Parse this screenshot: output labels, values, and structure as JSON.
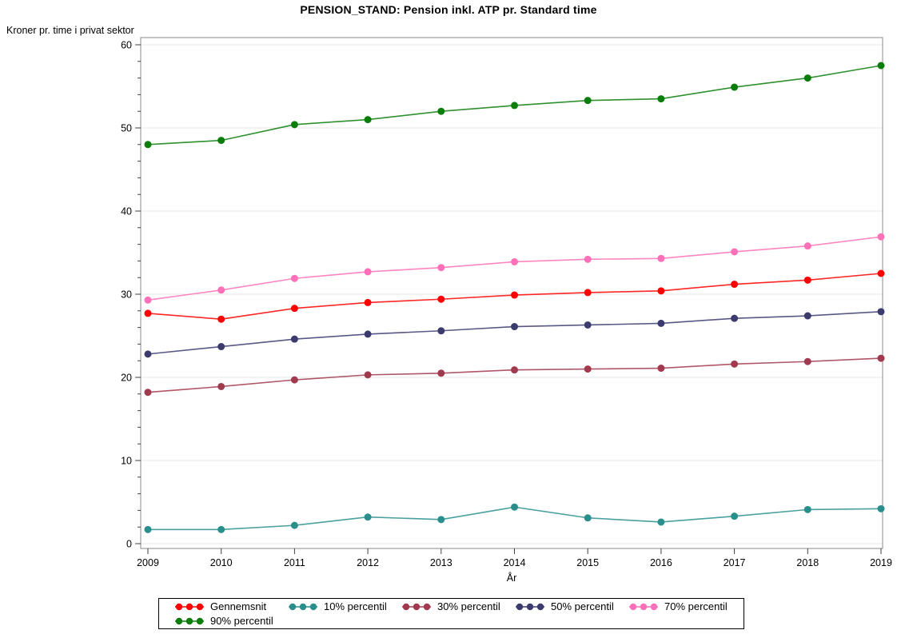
{
  "title": "PENSION_STAND: Pension inkl. ATP pr. Standard time",
  "y_axis_title": "Kroner pr. time i privat sektor",
  "x_axis_title": "År",
  "chart_data": {
    "type": "line",
    "x": [
      2009,
      2010,
      2011,
      2012,
      2013,
      2014,
      2015,
      2016,
      2017,
      2018,
      2019
    ],
    "series": [
      {
        "name": "Gennemsnit",
        "color": "#FF0000",
        "values": [
          27.7,
          27.0,
          28.3,
          29.0,
          29.4,
          29.9,
          30.2,
          30.4,
          31.2,
          31.7,
          32.5
        ]
      },
      {
        "name": "10% percentil",
        "color": "#2A8F8C",
        "values": [
          1.7,
          1.7,
          2.2,
          3.2,
          2.9,
          4.4,
          3.1,
          2.6,
          3.3,
          4.1,
          4.2
        ]
      },
      {
        "name": "30% percentil",
        "color": "#A13A4E",
        "values": [
          18.2,
          18.9,
          19.7,
          20.3,
          20.5,
          20.9,
          21.0,
          21.1,
          21.6,
          21.9,
          22.3
        ]
      },
      {
        "name": "50% percentil",
        "color": "#3B3B6E",
        "values": [
          22.8,
          23.7,
          24.6,
          25.2,
          25.6,
          26.1,
          26.3,
          26.5,
          27.1,
          27.4,
          27.9
        ]
      },
      {
        "name": "70% percentil",
        "color": "#FF70B8",
        "values": [
          29.3,
          30.5,
          31.9,
          32.7,
          33.2,
          33.9,
          34.2,
          34.3,
          35.1,
          35.8,
          36.9
        ]
      },
      {
        "name": "90% percentil",
        "color": "#0B7D0B",
        "values": [
          48.0,
          48.5,
          50.4,
          51.0,
          52.0,
          52.7,
          53.3,
          53.5,
          54.9,
          56.0,
          57.5
        ]
      }
    ],
    "ylim": [
      0,
      60
    ],
    "y_major_ticks": [
      0,
      10,
      20,
      30,
      40,
      50,
      60
    ],
    "y_minor_step": 2,
    "grid": true,
    "marker": "circle",
    "legend_position": "bottom",
    "style_colors": {
      "gridline": "#E6E6E6",
      "frame": "#8A8A8A",
      "tick": "#404040",
      "text": "#000000"
    }
  }
}
